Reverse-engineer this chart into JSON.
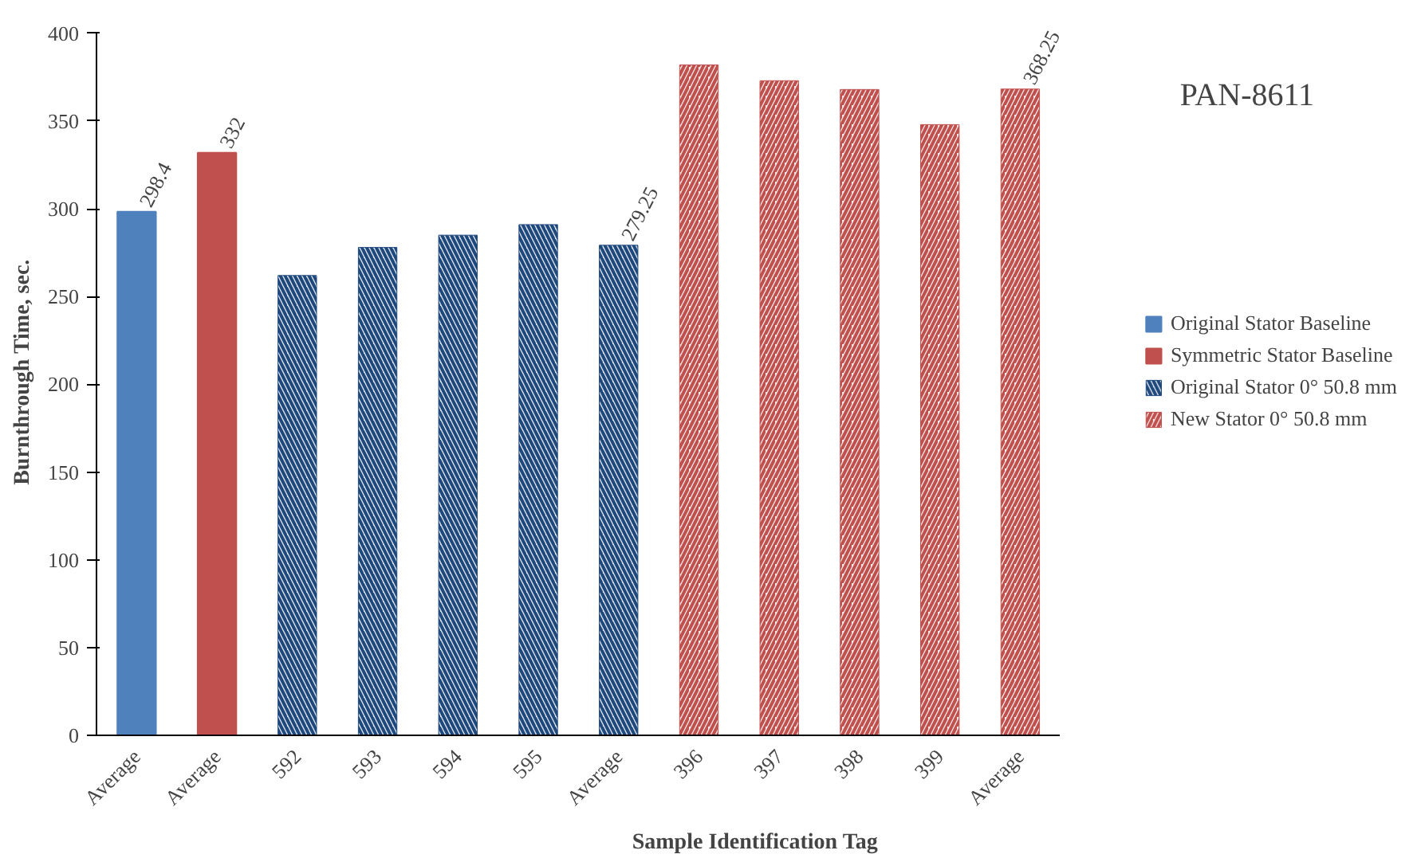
{
  "chart_data": {
    "type": "bar",
    "title": "PAN-8611",
    "xlabel": "Sample Identification Tag",
    "ylabel": "Burnthrough Time, sec.",
    "categories": [
      "Average",
      "Average",
      "592",
      "593",
      "594",
      "595",
      "Average",
      "396",
      "397",
      "398",
      "399",
      "Average"
    ],
    "series": [
      {
        "name": "Original Stator Baseline",
        "color": "#4f81bd",
        "values": [
          298.4,
          null,
          null,
          null,
          null,
          null,
          null,
          null,
          null,
          null,
          null,
          null
        ],
        "value_labels": [
          "298.4",
          null,
          null,
          null,
          null,
          null,
          null,
          null,
          null,
          null,
          null,
          null
        ]
      },
      {
        "name": "Symmetric Stator Baseline",
        "color": "#c0504d",
        "values": [
          null,
          332,
          null,
          null,
          null,
          null,
          null,
          null,
          null,
          null,
          null,
          null
        ],
        "value_labels": [
          null,
          "332",
          null,
          null,
          null,
          null,
          null,
          null,
          null,
          null,
          null,
          null
        ]
      },
      {
        "name": "Original Stator 0° 50.8 mm",
        "color": "#1f497d",
        "values": [
          null,
          null,
          262,
          278,
          285,
          291,
          279.25,
          null,
          null,
          null,
          null,
          null
        ],
        "value_labels": [
          null,
          null,
          null,
          null,
          null,
          null,
          "279.25",
          null,
          null,
          null,
          null,
          null
        ]
      },
      {
        "name": "New Stator 0° 50.8 mm",
        "color": "#c0504d",
        "values": [
          null,
          null,
          null,
          null,
          null,
          null,
          null,
          382,
          373,
          368,
          348,
          368.25
        ],
        "value_labels": [
          null,
          null,
          null,
          null,
          null,
          null,
          null,
          null,
          null,
          null,
          null,
          "368.25"
        ]
      }
    ],
    "ylim": [
      0,
      400
    ],
    "yticks": [
      0,
      50,
      100,
      150,
      200,
      250,
      300,
      350,
      400
    ],
    "grid": false,
    "legend": "right"
  }
}
